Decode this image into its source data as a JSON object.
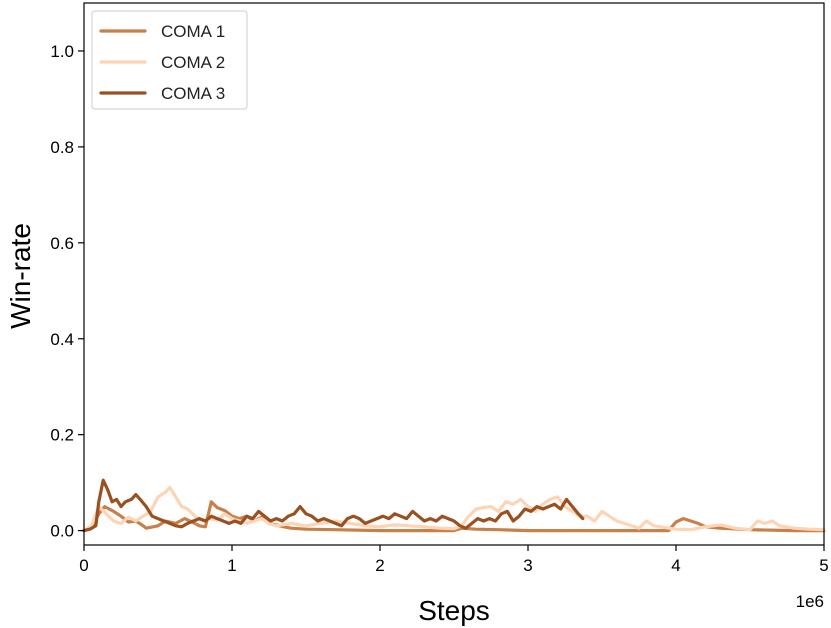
{
  "chart_data": {
    "type": "line",
    "xlabel": "Steps",
    "ylabel": "Win-rate",
    "x_offset_label": "1e6",
    "xlim": [
      0,
      5
    ],
    "ylim": [
      -0.03,
      1.1
    ],
    "x_ticks": [
      0,
      1,
      2,
      3,
      4,
      5
    ],
    "x_tick_labels": [
      "0",
      "1",
      "2",
      "3",
      "4",
      "5"
    ],
    "y_ticks": [
      0.0,
      0.2,
      0.4,
      0.6,
      0.8,
      1.0
    ],
    "y_tick_labels": [
      "0.0",
      "0.2",
      "0.4",
      "0.6",
      "0.8",
      "1.0"
    ],
    "grid": false,
    "legend_position": "top-left",
    "series": [
      {
        "name": "COMA 1",
        "color": "#c8804a",
        "points": [
          [
            0.0,
            0.0
          ],
          [
            0.05,
            0.005
          ],
          [
            0.1,
            0.035
          ],
          [
            0.14,
            0.05
          ],
          [
            0.2,
            0.04
          ],
          [
            0.25,
            0.03
          ],
          [
            0.3,
            0.018
          ],
          [
            0.35,
            0.02
          ],
          [
            0.4,
            0.01
          ],
          [
            0.42,
            0.005
          ],
          [
            0.5,
            0.01
          ],
          [
            0.55,
            0.02
          ],
          [
            0.62,
            0.015
          ],
          [
            0.68,
            0.025
          ],
          [
            0.73,
            0.018
          ],
          [
            0.78,
            0.01
          ],
          [
            0.82,
            0.008
          ],
          [
            0.86,
            0.06
          ],
          [
            0.9,
            0.048
          ],
          [
            0.95,
            0.042
          ],
          [
            1.0,
            0.03
          ],
          [
            1.05,
            0.025
          ],
          [
            1.1,
            0.03
          ],
          [
            1.15,
            0.02
          ],
          [
            1.2,
            0.028
          ],
          [
            1.25,
            0.015
          ],
          [
            1.3,
            0.012
          ],
          [
            1.35,
            0.008
          ],
          [
            1.4,
            0.005
          ],
          [
            1.5,
            0.003
          ],
          [
            1.7,
            0.002
          ],
          [
            2.0,
            0.0
          ],
          [
            2.5,
            0.0
          ],
          [
            2.55,
            0.005
          ],
          [
            2.65,
            0.003
          ],
          [
            2.8,
            0.002
          ],
          [
            3.0,
            0.0
          ],
          [
            3.5,
            0.0
          ],
          [
            3.8,
            0.0
          ],
          [
            3.95,
            0.0
          ],
          [
            4.0,
            0.018
          ],
          [
            4.05,
            0.025
          ],
          [
            4.1,
            0.02
          ],
          [
            4.15,
            0.015
          ],
          [
            4.2,
            0.008
          ],
          [
            4.3,
            0.005
          ],
          [
            4.5,
            0.002
          ],
          [
            4.8,
            0.0
          ],
          [
            5.0,
            0.0
          ]
        ]
      },
      {
        "name": "COMA 2",
        "color": "#fdd4b4",
        "points": [
          [
            0.0,
            0.0
          ],
          [
            0.05,
            0.01
          ],
          [
            0.1,
            0.05
          ],
          [
            0.15,
            0.035
          ],
          [
            0.2,
            0.02
          ],
          [
            0.25,
            0.015
          ],
          [
            0.3,
            0.028
          ],
          [
            0.35,
            0.02
          ],
          [
            0.4,
            0.03
          ],
          [
            0.45,
            0.04
          ],
          [
            0.5,
            0.07
          ],
          [
            0.55,
            0.08
          ],
          [
            0.58,
            0.09
          ],
          [
            0.62,
            0.07
          ],
          [
            0.66,
            0.05
          ],
          [
            0.7,
            0.045
          ],
          [
            0.75,
            0.03
          ],
          [
            0.8,
            0.02
          ],
          [
            0.85,
            0.025
          ],
          [
            0.9,
            0.022
          ],
          [
            0.95,
            0.035
          ],
          [
            1.0,
            0.025
          ],
          [
            1.05,
            0.02
          ],
          [
            1.1,
            0.015
          ],
          [
            1.15,
            0.02
          ],
          [
            1.2,
            0.025
          ],
          [
            1.25,
            0.015
          ],
          [
            1.3,
            0.01
          ],
          [
            1.4,
            0.015
          ],
          [
            1.5,
            0.01
          ],
          [
            1.6,
            0.015
          ],
          [
            1.7,
            0.02
          ],
          [
            1.8,
            0.015
          ],
          [
            1.9,
            0.01
          ],
          [
            2.0,
            0.008
          ],
          [
            2.1,
            0.012
          ],
          [
            2.2,
            0.01
          ],
          [
            2.3,
            0.008
          ],
          [
            2.4,
            0.005
          ],
          [
            2.5,
            0.004
          ],
          [
            2.55,
            0.01
          ],
          [
            2.6,
            0.03
          ],
          [
            2.65,
            0.045
          ],
          [
            2.7,
            0.048
          ],
          [
            2.75,
            0.05
          ],
          [
            2.8,
            0.04
          ],
          [
            2.85,
            0.06
          ],
          [
            2.9,
            0.055
          ],
          [
            2.95,
            0.065
          ],
          [
            3.0,
            0.05
          ],
          [
            3.05,
            0.04
          ],
          [
            3.1,
            0.055
          ],
          [
            3.15,
            0.065
          ],
          [
            3.2,
            0.07
          ],
          [
            3.25,
            0.05
          ],
          [
            3.3,
            0.04
          ],
          [
            3.35,
            0.03
          ],
          [
            3.4,
            0.03
          ],
          [
            3.45,
            0.02
          ],
          [
            3.5,
            0.04
          ],
          [
            3.55,
            0.03
          ],
          [
            3.6,
            0.02
          ],
          [
            3.65,
            0.015
          ],
          [
            3.7,
            0.01
          ],
          [
            3.75,
            0.005
          ],
          [
            3.8,
            0.02
          ],
          [
            3.85,
            0.01
          ],
          [
            3.9,
            0.008
          ],
          [
            3.95,
            0.005
          ],
          [
            4.0,
            0.003
          ],
          [
            4.1,
            0.002
          ],
          [
            4.2,
            0.008
          ],
          [
            4.3,
            0.012
          ],
          [
            4.4,
            0.005
          ],
          [
            4.5,
            0.002
          ],
          [
            4.55,
            0.02
          ],
          [
            4.6,
            0.015
          ],
          [
            4.65,
            0.02
          ],
          [
            4.7,
            0.01
          ],
          [
            4.8,
            0.005
          ],
          [
            4.9,
            0.003
          ],
          [
            5.0,
            0.002
          ]
        ]
      },
      {
        "name": "COMA 3",
        "color": "#9a5020",
        "points": [
          [
            0.0,
            0.0
          ],
          [
            0.04,
            0.003
          ],
          [
            0.08,
            0.01
          ],
          [
            0.1,
            0.06
          ],
          [
            0.13,
            0.105
          ],
          [
            0.16,
            0.085
          ],
          [
            0.19,
            0.06
          ],
          [
            0.22,
            0.065
          ],
          [
            0.25,
            0.05
          ],
          [
            0.28,
            0.06
          ],
          [
            0.32,
            0.065
          ],
          [
            0.35,
            0.075
          ],
          [
            0.38,
            0.065
          ],
          [
            0.42,
            0.05
          ],
          [
            0.46,
            0.03
          ],
          [
            0.5,
            0.025
          ],
          [
            0.54,
            0.02
          ],
          [
            0.58,
            0.015
          ],
          [
            0.62,
            0.01
          ],
          [
            0.66,
            0.008
          ],
          [
            0.7,
            0.015
          ],
          [
            0.74,
            0.02
          ],
          [
            0.78,
            0.025
          ],
          [
            0.82,
            0.02
          ],
          [
            0.86,
            0.03
          ],
          [
            0.9,
            0.025
          ],
          [
            0.94,
            0.02
          ],
          [
            0.98,
            0.015
          ],
          [
            1.02,
            0.02
          ],
          [
            1.06,
            0.015
          ],
          [
            1.1,
            0.03
          ],
          [
            1.14,
            0.025
          ],
          [
            1.18,
            0.04
          ],
          [
            1.22,
            0.03
          ],
          [
            1.26,
            0.02
          ],
          [
            1.3,
            0.025
          ],
          [
            1.34,
            0.02
          ],
          [
            1.38,
            0.03
          ],
          [
            1.42,
            0.035
          ],
          [
            1.46,
            0.05
          ],
          [
            1.5,
            0.035
          ],
          [
            1.54,
            0.03
          ],
          [
            1.58,
            0.02
          ],
          [
            1.62,
            0.025
          ],
          [
            1.66,
            0.02
          ],
          [
            1.7,
            0.015
          ],
          [
            1.74,
            0.01
          ],
          [
            1.78,
            0.025
          ],
          [
            1.82,
            0.03
          ],
          [
            1.86,
            0.025
          ],
          [
            1.9,
            0.015
          ],
          [
            1.94,
            0.02
          ],
          [
            1.98,
            0.025
          ],
          [
            2.02,
            0.03
          ],
          [
            2.06,
            0.025
          ],
          [
            2.1,
            0.035
          ],
          [
            2.14,
            0.03
          ],
          [
            2.18,
            0.025
          ],
          [
            2.22,
            0.04
          ],
          [
            2.26,
            0.03
          ],
          [
            2.3,
            0.02
          ],
          [
            2.34,
            0.025
          ],
          [
            2.38,
            0.02
          ],
          [
            2.42,
            0.03
          ],
          [
            2.46,
            0.025
          ],
          [
            2.5,
            0.02
          ],
          [
            2.54,
            0.01
          ],
          [
            2.58,
            0.005
          ],
          [
            2.62,
            0.015
          ],
          [
            2.66,
            0.025
          ],
          [
            2.7,
            0.02
          ],
          [
            2.74,
            0.025
          ],
          [
            2.78,
            0.02
          ],
          [
            2.82,
            0.035
          ],
          [
            2.86,
            0.04
          ],
          [
            2.9,
            0.02
          ],
          [
            2.94,
            0.03
          ],
          [
            2.98,
            0.045
          ],
          [
            3.02,
            0.04
          ],
          [
            3.06,
            0.05
          ],
          [
            3.1,
            0.045
          ],
          [
            3.14,
            0.05
          ],
          [
            3.18,
            0.055
          ],
          [
            3.22,
            0.045
          ],
          [
            3.26,
            0.065
          ],
          [
            3.3,
            0.05
          ],
          [
            3.34,
            0.035
          ],
          [
            3.37,
            0.025
          ]
        ]
      }
    ]
  }
}
